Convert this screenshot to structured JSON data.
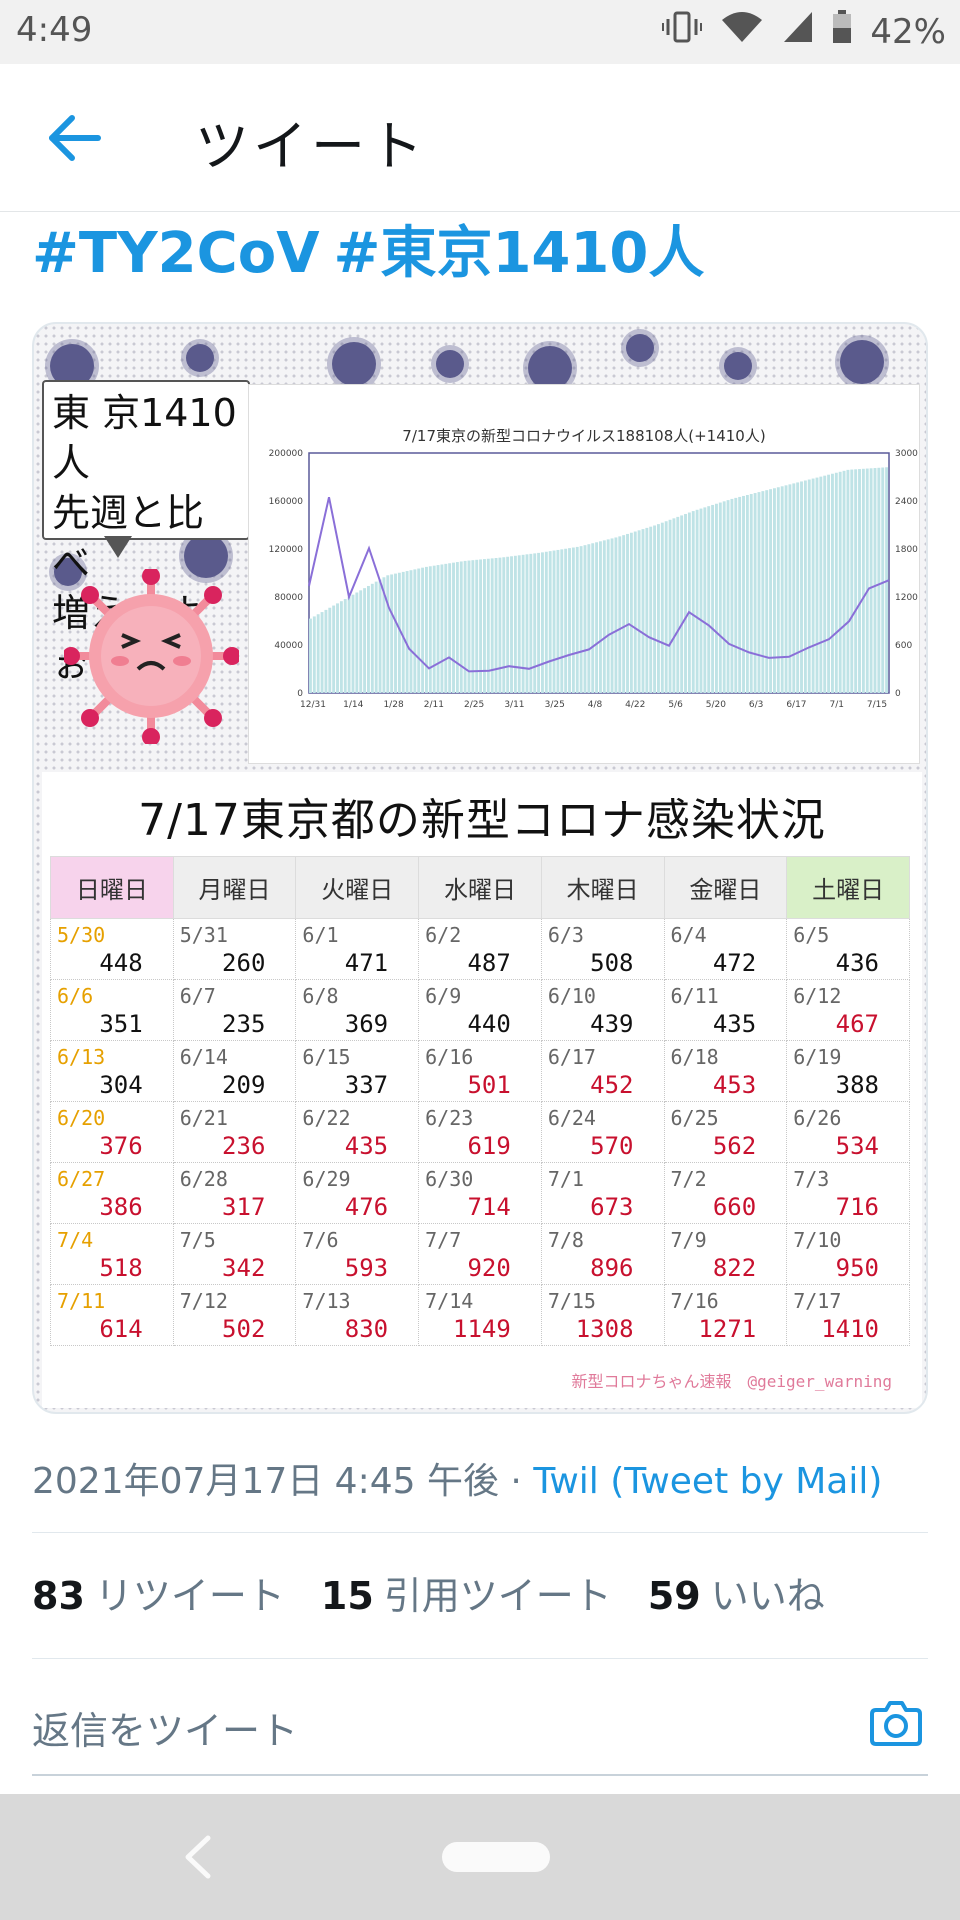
{
  "status_bar": {
    "time": "4:49",
    "battery": "42%",
    "icons": [
      "vibrate-icon",
      "wifi-icon",
      "signal-icon",
      "battery-icon"
    ]
  },
  "header": {
    "title": "ツイート",
    "back_icon": "arrow-left-icon"
  },
  "tweet": {
    "hashtags": [
      "#TY2CoV",
      "#東京1410人"
    ],
    "timestamp": "2021年07月17日 4:45 午後",
    "separator": "·",
    "source": "Twil (Tweet by Mail)",
    "stats": {
      "retweets": {
        "count": "83",
        "label": "リツイート"
      },
      "quotes": {
        "count": "15",
        "label": "引用ツイート"
      },
      "likes": {
        "count": "59",
        "label": "いいね"
      }
    },
    "reply_placeholder": "返信をツイート",
    "camera_icon": "camera-icon"
  },
  "image": {
    "bubble_lines": [
      "東 京1410人",
      "先週と比べ",
      "増えたよぉ"
    ],
    "table_title": "7/17東京都の新型コロナ感染状況",
    "weekdays": [
      "日曜日",
      "月曜日",
      "火曜日",
      "水曜日",
      "木曜日",
      "金曜日",
      "土曜日"
    ],
    "weeks": [
      [
        {
          "d": "5/30",
          "v": "448",
          "up": false
        },
        {
          "d": "5/31",
          "v": "260",
          "up": false
        },
        {
          "d": "6/1",
          "v": "471",
          "up": false
        },
        {
          "d": "6/2",
          "v": "487",
          "up": false
        },
        {
          "d": "6/3",
          "v": "508",
          "up": false
        },
        {
          "d": "6/4",
          "v": "472",
          "up": false
        },
        {
          "d": "6/5",
          "v": "436",
          "up": false
        }
      ],
      [
        {
          "d": "6/6",
          "v": "351",
          "up": false
        },
        {
          "d": "6/7",
          "v": "235",
          "up": false
        },
        {
          "d": "6/8",
          "v": "369",
          "up": false
        },
        {
          "d": "6/9",
          "v": "440",
          "up": false
        },
        {
          "d": "6/10",
          "v": "439",
          "up": false
        },
        {
          "d": "6/11",
          "v": "435",
          "up": false
        },
        {
          "d": "6/12",
          "v": "467",
          "up": true
        }
      ],
      [
        {
          "d": "6/13",
          "v": "304",
          "up": false
        },
        {
          "d": "6/14",
          "v": "209",
          "up": false
        },
        {
          "d": "6/15",
          "v": "337",
          "up": false
        },
        {
          "d": "6/16",
          "v": "501",
          "up": true
        },
        {
          "d": "6/17",
          "v": "452",
          "up": true
        },
        {
          "d": "6/18",
          "v": "453",
          "up": true
        },
        {
          "d": "6/19",
          "v": "388",
          "up": false
        }
      ],
      [
        {
          "d": "6/20",
          "v": "376",
          "up": true
        },
        {
          "d": "6/21",
          "v": "236",
          "up": true
        },
        {
          "d": "6/22",
          "v": "435",
          "up": true
        },
        {
          "d": "6/23",
          "v": "619",
          "up": true
        },
        {
          "d": "6/24",
          "v": "570",
          "up": true
        },
        {
          "d": "6/25",
          "v": "562",
          "up": true
        },
        {
          "d": "6/26",
          "v": "534",
          "up": true
        }
      ],
      [
        {
          "d": "6/27",
          "v": "386",
          "up": true
        },
        {
          "d": "6/28",
          "v": "317",
          "up": true
        },
        {
          "d": "6/29",
          "v": "476",
          "up": true
        },
        {
          "d": "6/30",
          "v": "714",
          "up": true
        },
        {
          "d": "7/1",
          "v": "673",
          "up": true
        },
        {
          "d": "7/2",
          "v": "660",
          "up": true
        },
        {
          "d": "7/3",
          "v": "716",
          "up": true
        }
      ],
      [
        {
          "d": "7/4",
          "v": "518",
          "up": true
        },
        {
          "d": "7/5",
          "v": "342",
          "up": true
        },
        {
          "d": "7/6",
          "v": "593",
          "up": true
        },
        {
          "d": "7/7",
          "v": "920",
          "up": true
        },
        {
          "d": "7/8",
          "v": "896",
          "up": true
        },
        {
          "d": "7/9",
          "v": "822",
          "up": true
        },
        {
          "d": "7/10",
          "v": "950",
          "up": true
        }
      ],
      [
        {
          "d": "7/11",
          "v": "614",
          "up": true
        },
        {
          "d": "7/12",
          "v": "502",
          "up": true
        },
        {
          "d": "7/13",
          "v": "830",
          "up": true
        },
        {
          "d": "7/14",
          "v": "1149",
          "up": true
        },
        {
          "d": "7/15",
          "v": "1308",
          "up": true
        },
        {
          "d": "7/16",
          "v": "1271",
          "up": true
        },
        {
          "d": "7/17",
          "v": "1410",
          "up": true
        }
      ]
    ],
    "credit": "新型コロナちゃん速報　@geiger_warning",
    "colors": {
      "bar": "#bfe3e6",
      "line": "#8a6fd8",
      "up": "#c8102e",
      "sunday_date": "#e6a000"
    }
  },
  "chart_data": {
    "type": "bar",
    "title": "7/17東京の新型コロナウイルス188108人(+1410人)",
    "ylabel": "",
    "y2label": "",
    "x_ticks": [
      "12/31",
      "1/14",
      "1/28",
      "2/11",
      "2/25",
      "3/11",
      "3/25",
      "4/8",
      "4/22",
      "5/6",
      "5/20",
      "6/3",
      "6/17",
      "7/1",
      "7/15"
    ],
    "y_ticks": [
      "0",
      "40000",
      "80000",
      "120000",
      "160000",
      "200000"
    ],
    "y2_ticks": [
      "0",
      "600",
      "1200",
      "1800",
      "2400",
      "3000"
    ],
    "ylim": [
      0,
      200000
    ],
    "y2lim": [
      0,
      3000
    ],
    "series": [
      {
        "name": "",
        "type": "bar",
        "axis": "left",
        "x": [
          "12/31",
          "1/14",
          "1/28",
          "2/11",
          "2/25",
          "3/11",
          "3/25",
          "4/8",
          "4/22",
          "5/6",
          "5/20",
          "6/3",
          "6/17",
          "7/1",
          "7/15",
          "7/17"
        ],
        "values": [
          62000,
          80000,
          98000,
          105000,
          110000,
          113000,
          117000,
          122000,
          130000,
          140000,
          152000,
          162000,
          170000,
          178000,
          186000,
          188108
        ]
      },
      {
        "name": "",
        "type": "line",
        "axis": "right",
        "x": [
          "12/31",
          "1/7",
          "1/14",
          "1/21",
          "1/28",
          "2/4",
          "2/11",
          "2/18",
          "2/25",
          "3/4",
          "3/11",
          "3/18",
          "3/25",
          "4/1",
          "4/8",
          "4/15",
          "4/22",
          "4/29",
          "5/6",
          "5/13",
          "5/20",
          "5/27",
          "6/3",
          "6/10",
          "6/17",
          "6/24",
          "7/1",
          "7/8",
          "7/15",
          "7/17"
        ],
        "values": [
          1337,
          2447,
          1200,
          1810,
          1064,
          555,
          307,
          445,
          270,
          279,
          335,
          303,
          394,
          475,
          545,
          729,
          861,
          698,
          591,
          1010,
          843,
          614,
          508,
          439,
          452,
          570,
          673,
          896,
          1308,
          1410
        ]
      }
    ],
    "legend": "none",
    "grid": false
  }
}
